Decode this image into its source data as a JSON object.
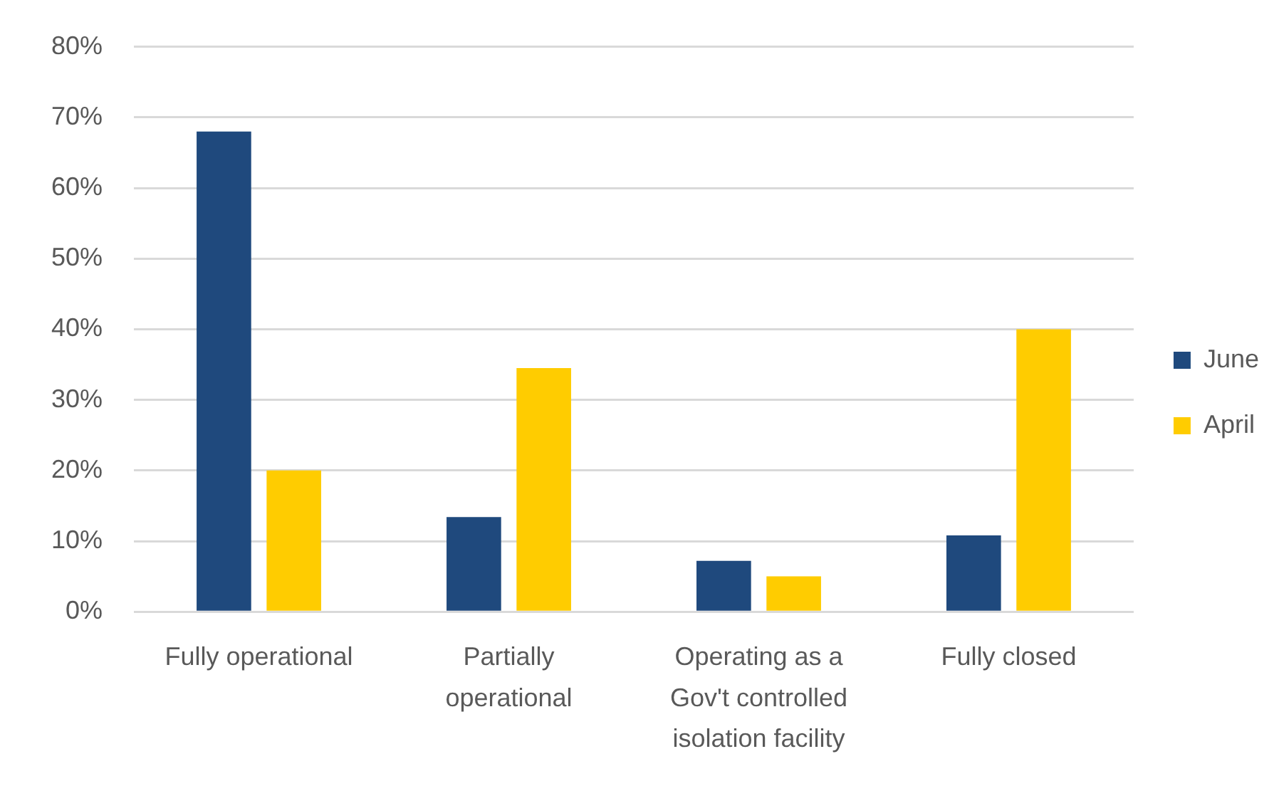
{
  "chart_data": {
    "type": "bar",
    "categories": [
      "Fully operational",
      "Partially operational",
      "Operating as a Gov't controlled isolation facility",
      "Fully closed"
    ],
    "series": [
      {
        "name": "June",
        "color": "#1f497d",
        "values": [
          68,
          13.4,
          7.2,
          10.8
        ]
      },
      {
        "name": "April",
        "color": "#ffcc00",
        "values": [
          20,
          34.5,
          5,
          40
        ]
      }
    ],
    "ylim": [
      0,
      80
    ],
    "yticks": [
      {
        "value": 0,
        "label": "0%"
      },
      {
        "value": 10,
        "label": "10%"
      },
      {
        "value": 20,
        "label": "20%"
      },
      {
        "value": 30,
        "label": "30%"
      },
      {
        "value": 40,
        "label": "40%"
      },
      {
        "value": 50,
        "label": "50%"
      },
      {
        "value": 60,
        "label": "60%"
      },
      {
        "value": 70,
        "label": "70%"
      },
      {
        "value": 80,
        "label": "80%"
      }
    ],
    "grid": "y",
    "legend": "right"
  }
}
